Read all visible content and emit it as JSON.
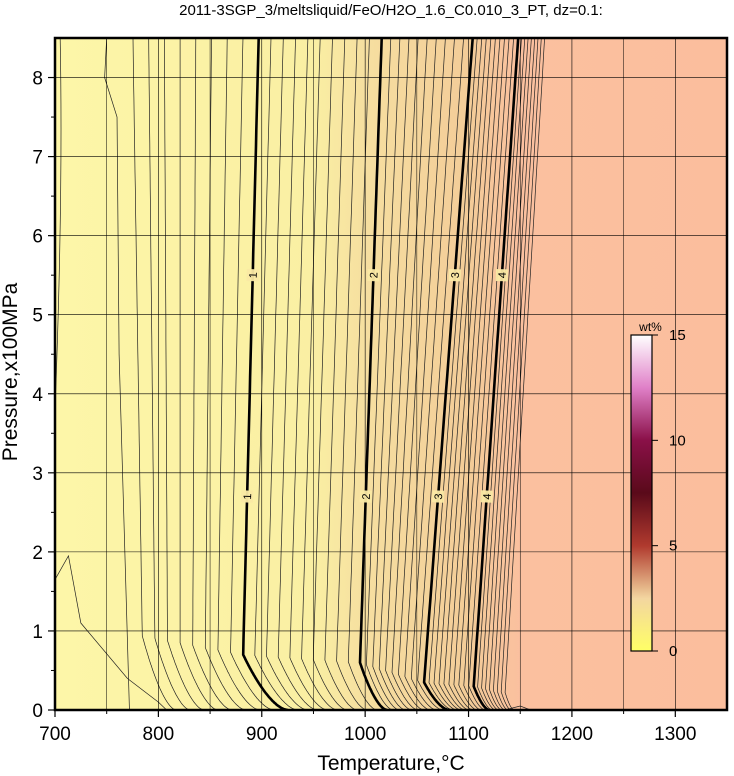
{
  "chart_data": {
    "type": "contour",
    "title": "2011-3SGP_3/meltsliquid/FeO/H2O_1.6_C0.010_3_PT, dz=0.1:",
    "xlabel": "Temperature,°C",
    "ylabel": "Pressure,x100MPa",
    "xlim": [
      700,
      1350
    ],
    "ylim": [
      0,
      8.5
    ],
    "x_ticks": [
      700,
      800,
      900,
      1000,
      1100,
      1200,
      1300
    ],
    "x_minor_step": 50,
    "y_ticks": [
      0,
      1,
      2,
      3,
      4,
      5,
      6,
      7,
      8
    ],
    "y_minor_step": 0.5,
    "grid": true,
    "contour_interval": 0.1,
    "major_contours": [
      {
        "label": "1",
        "low_p_T": 925,
        "knee_T": 882,
        "knee_P": 0.7,
        "top_T": 897
      },
      {
        "label": "2",
        "low_p_T": 1021,
        "knee_T": 995,
        "knee_P": 0.6,
        "top_T": 1016
      },
      {
        "label": "3",
        "low_p_T": 1081,
        "knee_T": 1057,
        "knee_P": 0.35,
        "top_T": 1104
      },
      {
        "label": "4",
        "low_p_T": 1120,
        "knee_T": 1105,
        "knee_P": 0.3,
        "top_T": 1148
      }
    ],
    "label_pressures": [
      2.7,
      5.5
    ],
    "fill_regions": [
      {
        "range_T": [
          700,
          1000
        ],
        "color": "#fbf1a0"
      },
      {
        "range_T": [
          1000,
          1150
        ],
        "color": "#f2cc9a"
      },
      {
        "range_T": [
          1150,
          1350
        ],
        "color": "#fbbe9d"
      }
    ],
    "colorbar": {
      "unit": "wt%",
      "range": [
        0,
        15
      ],
      "ticks": [
        0,
        5,
        10,
        15
      ],
      "colors": [
        "#ffff66",
        "#f3d6a0",
        "#b03a2e",
        "#5a0a1a",
        "#8a1048",
        "#e080c8",
        "#ffffff"
      ]
    }
  }
}
